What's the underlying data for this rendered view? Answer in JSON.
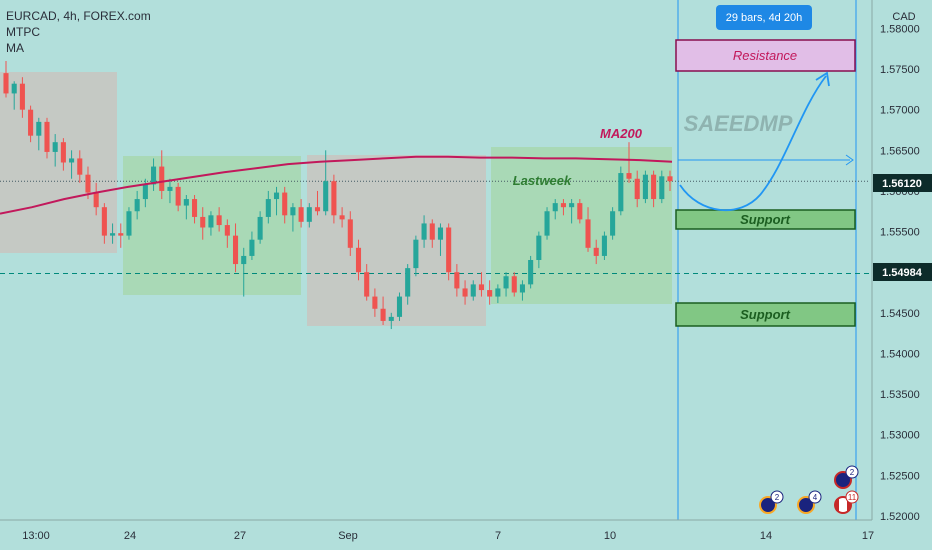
{
  "legend": {
    "symbol_line": "EURCAD, 4h, FOREX.com",
    "indicator_1": "MTPC",
    "indicator_2": "MA"
  },
  "currency": "CAD",
  "range_badge": "29 bars, 4d 20h",
  "watermark": "SAEEDMP",
  "annotations": {
    "ma_label": "MA200",
    "lastweek_label": "Lastweek",
    "resistance_label": "Resistance",
    "support_upper_label": "Support",
    "support_lower_label": "Support"
  },
  "price_tags": {
    "current": "1.56120",
    "level": "1.54984"
  },
  "event_icons": [
    {
      "count": "2",
      "flag": "eu"
    },
    {
      "count": "4",
      "flag": "eu"
    },
    {
      "count": "2",
      "flag": "eu"
    },
    {
      "count": "11",
      "flag": "ca"
    }
  ],
  "colors": {
    "background": "#b2dfdb",
    "up_candle": "#26a69a",
    "down_candle": "#ef5350",
    "ma_line": "#c2185b",
    "zone_gray": "#c8c5c0",
    "zone_green": "#a5d6a7",
    "resistance_fill": "#e1bee7",
    "resistance_border": "#880e4f",
    "support_border": "#1b5e20",
    "projection": "#2196f3",
    "badge": "#1e88e5"
  },
  "chart_data": {
    "type": "candlestick",
    "y_ticks": [
      "1.58000",
      "1.57500",
      "1.57000",
      "1.56500",
      "1.56000",
      "1.55500",
      "1.55000",
      "1.54500",
      "1.54000",
      "1.53500",
      "1.53000",
      "1.52500",
      "1.52000"
    ],
    "ylim": [
      1.5195,
      1.5835
    ],
    "x_ticks": [
      "13:00",
      "24",
      "27",
      "Sep",
      "7",
      "10",
      "14",
      "17"
    ],
    "horizontal_lines": [
      1.5612,
      1.54984
    ],
    "ma200": [
      1.5572,
      1.558,
      1.559,
      1.5598,
      1.5605,
      1.5611,
      1.5617,
      1.5623,
      1.5628,
      1.5633,
      1.5636,
      1.5638,
      1.564,
      1.5642,
      1.5642,
      1.5641,
      1.5641,
      1.564,
      1.564,
      1.5639,
      1.5638,
      1.5636
    ],
    "candles": [
      [
        1.5745,
        1.576,
        1.5715,
        1.572
      ],
      [
        1.572,
        1.5735,
        1.57,
        1.5732
      ],
      [
        1.5732,
        1.574,
        1.569,
        1.57
      ],
      [
        1.57,
        1.5705,
        1.566,
        1.5668
      ],
      [
        1.5668,
        1.569,
        1.565,
        1.5685
      ],
      [
        1.5685,
        1.569,
        1.564,
        1.5648
      ],
      [
        1.5648,
        1.567,
        1.563,
        1.566
      ],
      [
        1.566,
        1.5665,
        1.5625,
        1.5635
      ],
      [
        1.5635,
        1.565,
        1.5615,
        1.564
      ],
      [
        1.564,
        1.565,
        1.561,
        1.562
      ],
      [
        1.562,
        1.563,
        1.559,
        1.5598
      ],
      [
        1.5598,
        1.561,
        1.557,
        1.558
      ],
      [
        1.558,
        1.5585,
        1.5535,
        1.5545
      ],
      [
        1.5545,
        1.556,
        1.5535,
        1.5548
      ],
      [
        1.5548,
        1.556,
        1.553,
        1.5545
      ],
      [
        1.5545,
        1.558,
        1.554,
        1.5575
      ],
      [
        1.5575,
        1.56,
        1.5565,
        1.559
      ],
      [
        1.559,
        1.5615,
        1.558,
        1.5608
      ],
      [
        1.5608,
        1.564,
        1.56,
        1.563
      ],
      [
        1.563,
        1.565,
        1.559,
        1.56
      ],
      [
        1.56,
        1.5615,
        1.5585,
        1.5605
      ],
      [
        1.5605,
        1.561,
        1.5575,
        1.5582
      ],
      [
        1.5582,
        1.5595,
        1.5565,
        1.559
      ],
      [
        1.559,
        1.5595,
        1.556,
        1.5568
      ],
      [
        1.5568,
        1.558,
        1.554,
        1.5555
      ],
      [
        1.5555,
        1.5575,
        1.5545,
        1.557
      ],
      [
        1.557,
        1.558,
        1.555,
        1.5558
      ],
      [
        1.5558,
        1.5565,
        1.553,
        1.5545
      ],
      [
        1.5545,
        1.556,
        1.55,
        1.551
      ],
      [
        1.551,
        1.553,
        1.547,
        1.552
      ],
      [
        1.552,
        1.555,
        1.5515,
        1.554
      ],
      [
        1.554,
        1.5575,
        1.5535,
        1.5568
      ],
      [
        1.5568,
        1.56,
        1.556,
        1.559
      ],
      [
        1.559,
        1.5605,
        1.557,
        1.5598
      ],
      [
        1.5598,
        1.5605,
        1.556,
        1.557
      ],
      [
        1.557,
        1.5585,
        1.555,
        1.558
      ],
      [
        1.558,
        1.559,
        1.5555,
        1.5562
      ],
      [
        1.5562,
        1.5585,
        1.5555,
        1.558
      ],
      [
        1.558,
        1.56,
        1.557,
        1.5575
      ],
      [
        1.5575,
        1.565,
        1.557,
        1.5612
      ],
      [
        1.5612,
        1.562,
        1.556,
        1.557
      ],
      [
        1.557,
        1.558,
        1.5555,
        1.5565
      ],
      [
        1.5565,
        1.5575,
        1.552,
        1.553
      ],
      [
        1.553,
        1.554,
        1.549,
        1.55
      ],
      [
        1.55,
        1.551,
        1.5465,
        1.547
      ],
      [
        1.547,
        1.548,
        1.5445,
        1.5455
      ],
      [
        1.5455,
        1.547,
        1.5435,
        1.544
      ],
      [
        1.544,
        1.545,
        1.543,
        1.5445
      ],
      [
        1.5445,
        1.5475,
        1.544,
        1.547
      ],
      [
        1.547,
        1.551,
        1.546,
        1.5505
      ],
      [
        1.5505,
        1.5545,
        1.5495,
        1.554
      ],
      [
        1.554,
        1.557,
        1.553,
        1.556
      ],
      [
        1.556,
        1.5565,
        1.553,
        1.554
      ],
      [
        1.554,
        1.556,
        1.552,
        1.5555
      ],
      [
        1.5555,
        1.556,
        1.549,
        1.55
      ],
      [
        1.55,
        1.551,
        1.547,
        1.548
      ],
      [
        1.548,
        1.549,
        1.546,
        1.547
      ],
      [
        1.547,
        1.549,
        1.5465,
        1.5485
      ],
      [
        1.5485,
        1.55,
        1.547,
        1.5478
      ],
      [
        1.5478,
        1.549,
        1.546,
        1.547
      ],
      [
        1.547,
        1.5485,
        1.5462,
        1.548
      ],
      [
        1.548,
        1.55,
        1.547,
        1.5495
      ],
      [
        1.5495,
        1.55,
        1.547,
        1.5475
      ],
      [
        1.5475,
        1.549,
        1.5465,
        1.5485
      ],
      [
        1.5485,
        1.552,
        1.548,
        1.5515
      ],
      [
        1.5515,
        1.555,
        1.5505,
        1.5545
      ],
      [
        1.5545,
        1.558,
        1.554,
        1.5575
      ],
      [
        1.5575,
        1.559,
        1.5565,
        1.5585
      ],
      [
        1.5585,
        1.559,
        1.557,
        1.558
      ],
      [
        1.558,
        1.559,
        1.556,
        1.5585
      ],
      [
        1.5585,
        1.559,
        1.556,
        1.5565
      ],
      [
        1.5565,
        1.558,
        1.5525,
        1.553
      ],
      [
        1.553,
        1.554,
        1.551,
        1.552
      ],
      [
        1.552,
        1.555,
        1.5515,
        1.5545
      ],
      [
        1.5545,
        1.558,
        1.554,
        1.5575
      ],
      [
        1.5575,
        1.563,
        1.557,
        1.5622
      ],
      [
        1.5622,
        1.566,
        1.561,
        1.5615
      ],
      [
        1.5615,
        1.5625,
        1.558,
        1.559
      ],
      [
        1.559,
        1.5625,
        1.5585,
        1.562
      ],
      [
        1.562,
        1.5625,
        1.558,
        1.559
      ],
      [
        1.559,
        1.5625,
        1.5585,
        1.5618
      ],
      [
        1.5618,
        1.5625,
        1.56,
        1.5612
      ]
    ]
  }
}
